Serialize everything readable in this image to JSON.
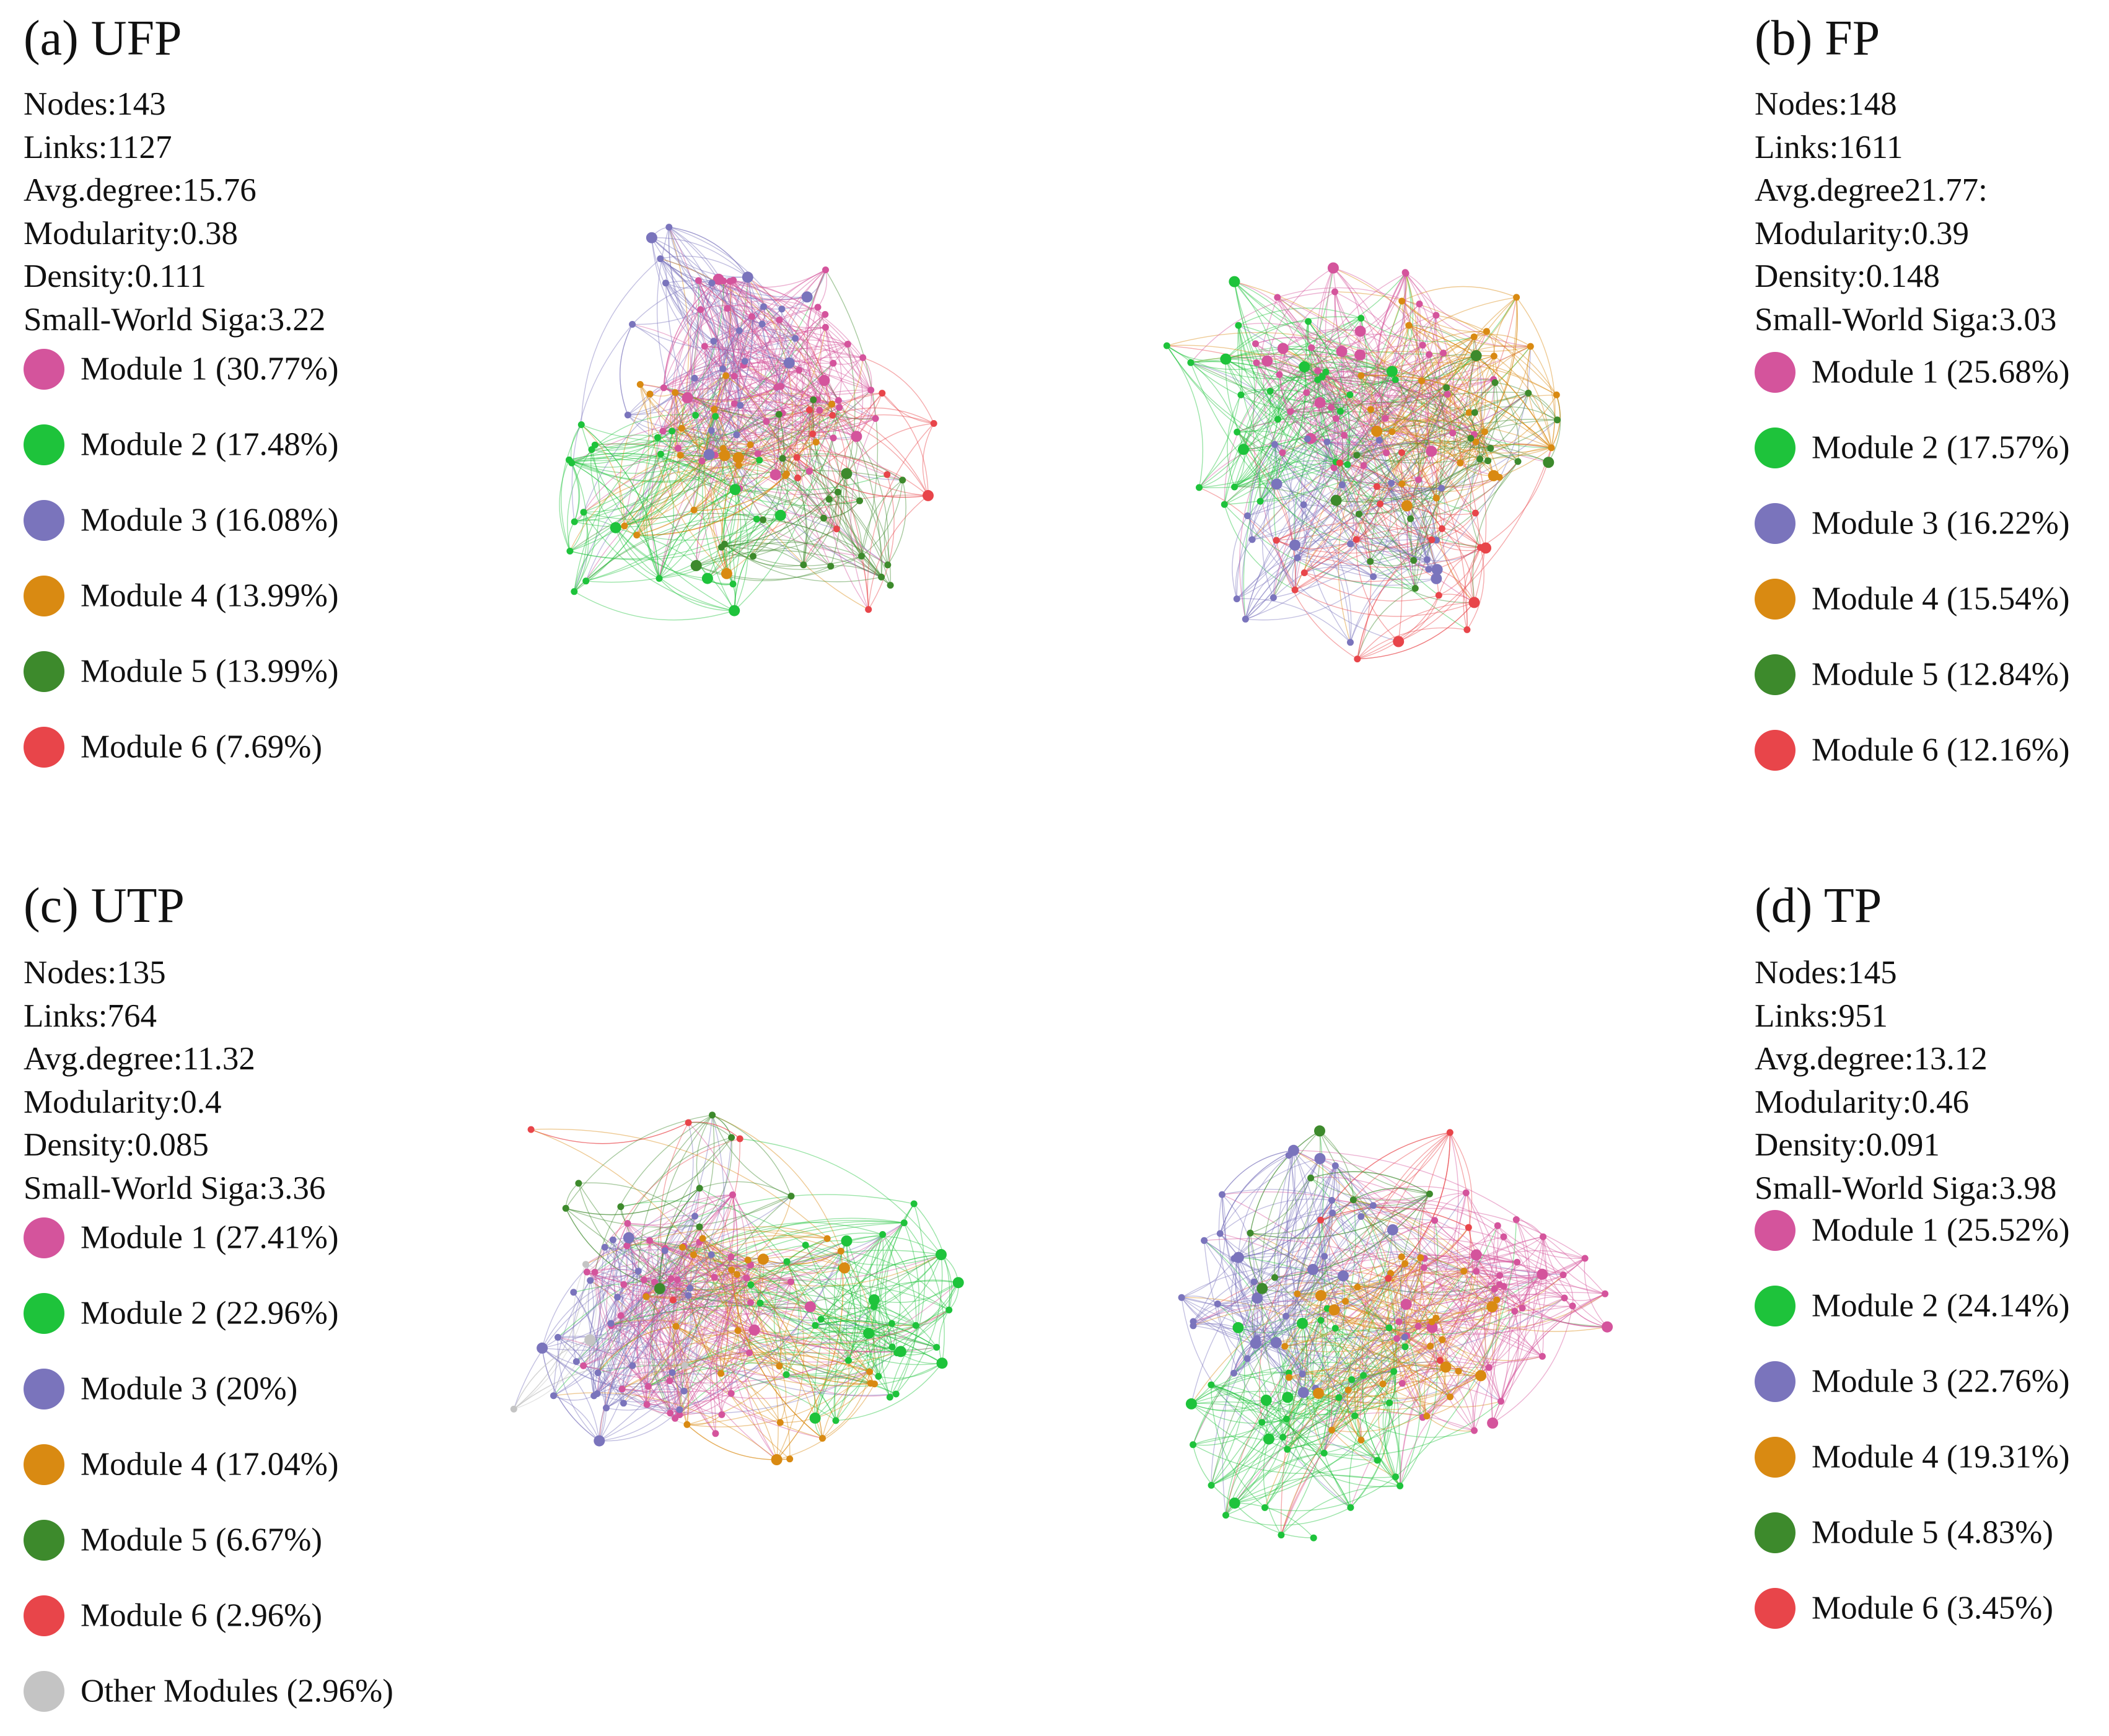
{
  "panels": [
    {
      "title": "(a) UFP",
      "stats": [
        "Nodes:143",
        "Links:1127",
        "Avg.degree:15.76",
        "Modularity:0.38",
        "Density:0.111",
        "Small-World Siga:3.22"
      ],
      "legend": [
        {
          "label": "Module 1 (30.77%)",
          "color": "#d4549c"
        },
        {
          "label": "Module 2 (17.48%)",
          "color": "#1ec33b"
        },
        {
          "label": "Module 3 (16.08%)",
          "color": "#7a74bc"
        },
        {
          "label": "Module 4 (13.99%)",
          "color": "#d98a12"
        },
        {
          "label": "Module 5 (13.99%)",
          "color": "#3d8a2c"
        },
        {
          "label": "Module 6 (7.69%)",
          "color": "#e8454a"
        }
      ],
      "network": {
        "nodes": 143,
        "module_shares": [
          30.77,
          17.48,
          16.08,
          13.99,
          13.99,
          7.69
        ]
      }
    },
    {
      "title": "(b) FP",
      "stats": [
        "Nodes:148",
        "Links:1611",
        "Avg.degree21.77:",
        "Modularity:0.39",
        "Density:0.148",
        "Small-World Siga:3.03"
      ],
      "legend": [
        {
          "label": "Module 1 (25.68%)",
          "color": "#d4549c"
        },
        {
          "label": "Module 2 (17.57%)",
          "color": "#1ec33b"
        },
        {
          "label": "Module 3 (16.22%)",
          "color": "#7a74bc"
        },
        {
          "label": "Module 4 (15.54%)",
          "color": "#d98a12"
        },
        {
          "label": "Module 5 (12.84%)",
          "color": "#3d8a2c"
        },
        {
          "label": "Module 6 (12.16%)",
          "color": "#e8454a"
        }
      ],
      "network": {
        "nodes": 148,
        "module_shares": [
          25.68,
          17.57,
          16.22,
          15.54,
          12.84,
          12.16
        ]
      }
    },
    {
      "title": "(c) UTP",
      "stats": [
        "Nodes:135",
        "Links:764",
        "Avg.degree:11.32",
        "Modularity:0.4",
        "Density:0.085",
        "Small-World Siga:3.36"
      ],
      "legend": [
        {
          "label": "Module 1 (27.41%)",
          "color": "#d4549c"
        },
        {
          "label": "Module 2 (22.96%)",
          "color": "#1ec33b"
        },
        {
          "label": "Module 3 (20%)",
          "color": "#7a74bc"
        },
        {
          "label": "Module 4 (17.04%)",
          "color": "#d98a12"
        },
        {
          "label": "Module 5 (6.67%)",
          "color": "#3d8a2c"
        },
        {
          "label": "Module 6 (2.96%)",
          "color": "#e8454a"
        },
        {
          "label": "Other Modules (2.96%)",
          "color": "#c4c4c4"
        }
      ],
      "network": {
        "nodes": 135,
        "module_shares": [
          27.41,
          22.96,
          20,
          17.04,
          6.67,
          2.96,
          2.96
        ]
      }
    },
    {
      "title": "(d) TP",
      "stats": [
        "Nodes:145",
        "Links:951",
        "Avg.degree:13.12",
        "Modularity:0.46",
        "Density:0.091",
        "Small-World Siga:3.98"
      ],
      "legend": [
        {
          "label": "Module 1 (25.52%)",
          "color": "#d4549c"
        },
        {
          "label": "Module 2 (24.14%)",
          "color": "#1ec33b"
        },
        {
          "label": "Module 3 (22.76%)",
          "color": "#7a74bc"
        },
        {
          "label": "Module 4 (19.31%)",
          "color": "#d98a12"
        },
        {
          "label": "Module 5 (4.83%)",
          "color": "#3d8a2c"
        },
        {
          "label": "Module 6 (3.45%)",
          "color": "#e8454a"
        }
      ],
      "network": {
        "nodes": 145,
        "module_shares": [
          25.52,
          24.14,
          22.76,
          19.31,
          4.83,
          3.45
        ]
      }
    }
  ]
}
